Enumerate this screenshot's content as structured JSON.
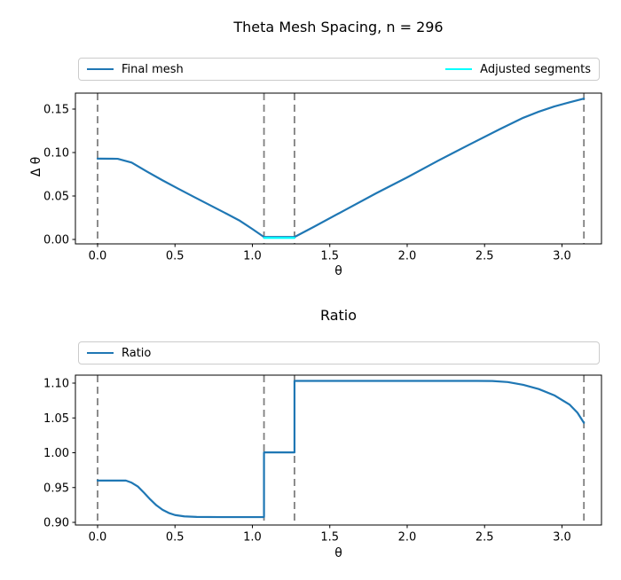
{
  "figure": {
    "background": "#ffffff"
  },
  "colors": {
    "final_mesh": "#1f77b4",
    "adjusted_segments": "#00ffff",
    "ratio": "#1f77b4",
    "vline": "#808080",
    "spine": "#000000",
    "tick_text": "#000000",
    "legend_border": "#cccccc"
  },
  "chart_data": [
    {
      "id": "mesh-spacing",
      "type": "line",
      "title": "Theta Mesh Spacing, n = 296",
      "xlabel": "θ",
      "ylabel": "Δ θ",
      "xlim": [
        -0.1433,
        3.2552
      ],
      "ylim": [
        -0.0051,
        0.16837
      ],
      "xticks": [
        0.0,
        0.5,
        1.0,
        1.5,
        2.0,
        2.5,
        3.0
      ],
      "xtick_labels": [
        "0.0",
        "0.5",
        "1.0",
        "1.5",
        "2.0",
        "2.5",
        "3.0"
      ],
      "yticks": [
        0.0,
        0.05,
        0.1,
        0.15
      ],
      "ytick_labels": [
        "0.00",
        "0.05",
        "0.10",
        "0.15"
      ],
      "grid": false,
      "legend_position": "above-expanded",
      "vlines": {
        "color": "#808080",
        "style": "dashed",
        "x": [
          0,
          1.075,
          1.272,
          3.1416
        ]
      },
      "legend": [
        {
          "label": "Final mesh",
          "color": "#1f77b4"
        },
        {
          "label": "Adjusted segments",
          "color": "#00ffff"
        }
      ],
      "series": [
        {
          "name": "Final mesh",
          "color": "#1f77b4",
          "points": [
            [
              0,
              0.093
            ],
            [
              0.13,
              0.0928
            ],
            [
              0.22,
              0.0885
            ],
            [
              0.32,
              0.078
            ],
            [
              0.42,
              0.068
            ],
            [
              0.52,
              0.0585
            ],
            [
              0.62,
              0.0492
            ],
            [
              0.72,
              0.04
            ],
            [
              0.82,
              0.0308
            ],
            [
              0.92,
              0.0214
            ],
            [
              1.0,
              0.012
            ],
            [
              1.075,
              0.0028
            ],
            [
              1.272,
              0.0028
            ],
            [
              1.4,
              0.0148
            ],
            [
              1.6,
              0.034
            ],
            [
              1.8,
              0.0532
            ],
            [
              2.0,
              0.0714
            ],
            [
              2.2,
              0.0906
            ],
            [
              2.4,
              0.109
            ],
            [
              2.6,
              0.127
            ],
            [
              2.75,
              0.14
            ],
            [
              2.85,
              0.147
            ],
            [
              2.95,
              0.153
            ],
            [
              3.05,
              0.1578
            ],
            [
              3.1416,
              0.162
            ]
          ]
        },
        {
          "name": "Adjusted segments",
          "color": "#00ffff",
          "points": [
            [
              1.075,
              0.0018
            ],
            [
              1.272,
              0.0018
            ]
          ]
        }
      ]
    },
    {
      "id": "ratio",
      "type": "line",
      "title": "Ratio",
      "xlabel": "θ",
      "ylabel": "",
      "xlim": [
        -0.1433,
        3.2552
      ],
      "ylim": [
        0.89618,
        1.11147
      ],
      "xticks": [
        0.0,
        0.5,
        1.0,
        1.5,
        2.0,
        2.5,
        3.0
      ],
      "xtick_labels": [
        "0.0",
        "0.5",
        "1.0",
        "1.5",
        "2.0",
        "2.5",
        "3.0"
      ],
      "yticks": [
        0.9,
        0.95,
        1.0,
        1.05,
        1.1
      ],
      "ytick_labels": [
        "0.90",
        "0.95",
        "1.00",
        "1.05",
        "1.10"
      ],
      "grid": false,
      "legend_position": "above-expanded",
      "vlines": {
        "color": "#808080",
        "style": "dashed",
        "x": [
          0,
          1.075,
          1.272,
          3.1416
        ]
      },
      "legend": [
        {
          "label": "Ratio",
          "color": "#1f77b4"
        }
      ],
      "series": [
        {
          "name": "Ratio",
          "color": "#1f77b4",
          "points": [
            [
              0,
              0.96
            ],
            [
              0.183,
              0.96
            ],
            [
              0.22,
              0.957
            ],
            [
              0.26,
              0.9515
            ],
            [
              0.3,
              0.9425
            ],
            [
              0.34,
              0.933
            ],
            [
              0.38,
              0.9245
            ],
            [
              0.42,
              0.918
            ],
            [
              0.46,
              0.9135
            ],
            [
              0.5,
              0.9105
            ],
            [
              0.56,
              0.9086
            ],
            [
              0.64,
              0.9078
            ],
            [
              0.8,
              0.9076
            ],
            [
              1.075,
              0.9076
            ],
            [
              1.075,
              1.0005
            ],
            [
              1.272,
              1.0005
            ],
            [
              1.272,
              1.1032
            ],
            [
              1.6,
              1.1032
            ],
            [
              2.0,
              1.1032
            ],
            [
              2.45,
              1.1032
            ],
            [
              2.55,
              1.103
            ],
            [
              2.65,
              1.1015
            ],
            [
              2.75,
              1.0975
            ],
            [
              2.85,
              1.0915
            ],
            [
              2.95,
              1.0825
            ],
            [
              3.05,
              1.069
            ],
            [
              3.1,
              1.0575
            ],
            [
              3.1416,
              1.043
            ]
          ]
        }
      ]
    }
  ]
}
